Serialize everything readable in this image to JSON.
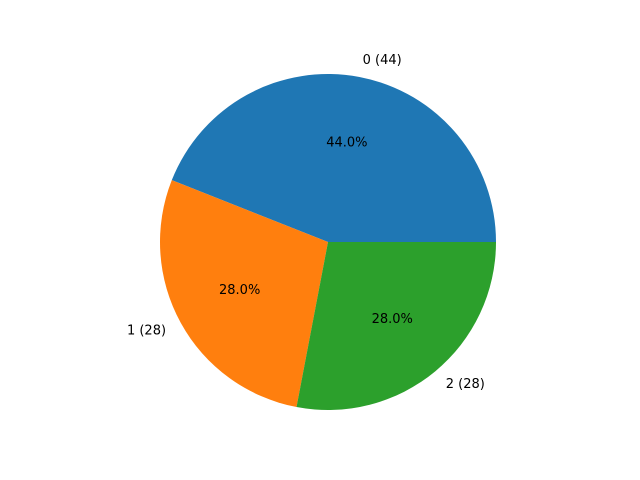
{
  "chart_data": {
    "type": "pie",
    "categories": [
      "0 (44)",
      "1 (28)",
      "2 (28)"
    ],
    "values": [
      44,
      28,
      28
    ],
    "value_labels": [
      "44.0%",
      "28.0%",
      "28.0%"
    ],
    "colors": [
      "#1f77b4",
      "#ff7f0e",
      "#2ca02c"
    ]
  }
}
